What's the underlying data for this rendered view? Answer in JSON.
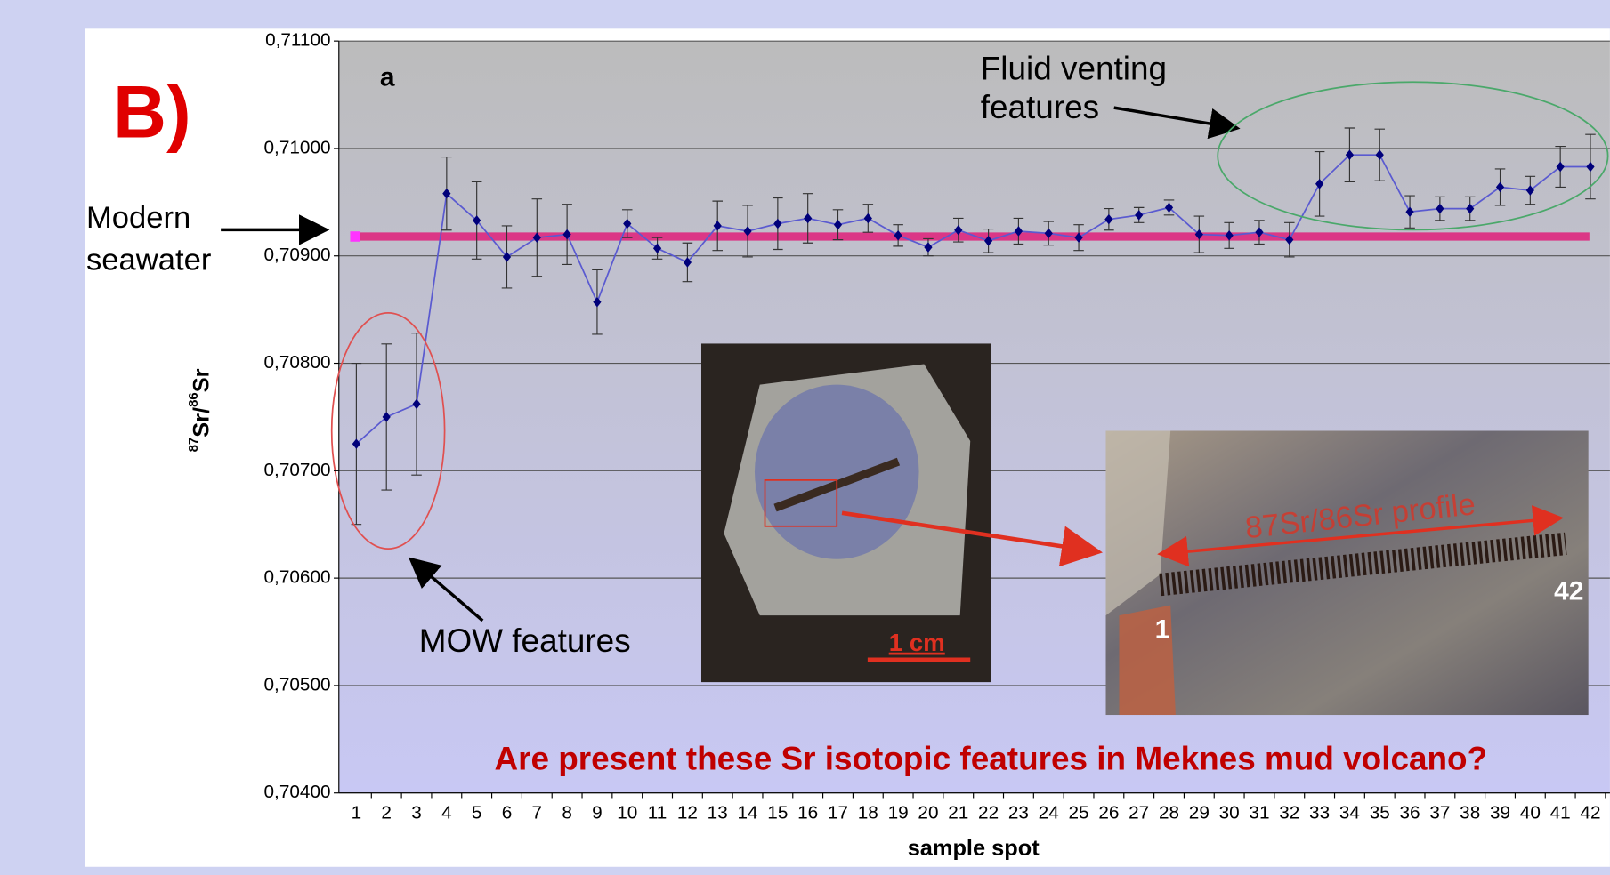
{
  "chart_data": {
    "type": "line",
    "panel_label": "B)",
    "subplot_label": "a",
    "xlabel": "sample spot",
    "ylabel": {
      "base1": "87",
      "mid": "Sr/",
      "base2": "86",
      "end": "Sr"
    },
    "categories": [
      1,
      2,
      3,
      4,
      5,
      6,
      7,
      8,
      9,
      10,
      11,
      12,
      13,
      14,
      15,
      16,
      17,
      18,
      19,
      20,
      21,
      22,
      23,
      24,
      25,
      26,
      27,
      28,
      29,
      30,
      31,
      32,
      33,
      34,
      35,
      36,
      37,
      38,
      39,
      40,
      41,
      42
    ],
    "series": [
      {
        "color": "#00007a",
        "line_color": "#5a5ad0",
        "values": [
          0.70725,
          0.7075,
          0.70762,
          0.70958,
          0.70933,
          0.70899,
          0.70917,
          0.7092,
          0.70857,
          0.7093,
          0.70907,
          0.70894,
          0.70928,
          0.70923,
          0.7093,
          0.70935,
          0.70929,
          0.70935,
          0.70919,
          0.70908,
          0.70924,
          0.70914,
          0.70923,
          0.70921,
          0.70917,
          0.70934,
          0.70938,
          0.70945,
          0.7092,
          0.70919,
          0.70922,
          0.70915,
          0.70967,
          0.70994,
          0.70994,
          0.70941,
          0.70944,
          0.70944,
          0.70964,
          0.70961,
          0.70983,
          0.70983
        ],
        "errors": [
          0.00075,
          0.00068,
          0.00066,
          0.00034,
          0.00036,
          0.00029,
          0.00036,
          0.00028,
          0.0003,
          0.00013,
          0.0001,
          0.00018,
          0.00023,
          0.00024,
          0.00024,
          0.00023,
          0.00014,
          0.00013,
          0.0001,
          8e-05,
          0.00011,
          0.00011,
          0.00012,
          0.00011,
          0.00012,
          0.0001,
          7e-05,
          7e-05,
          0.00017,
          0.00012,
          0.00011,
          0.00016,
          0.0003,
          0.00025,
          0.00024,
          0.00015,
          0.00011,
          0.00011,
          0.00017,
          0.00013,
          0.00019,
          0.0003
        ]
      }
    ],
    "reference_line": {
      "value": 0.70918,
      "color": "#e0207a",
      "label": [
        "Modern",
        "seawater"
      ]
    },
    "ylim": [
      0.704,
      0.711
    ],
    "yticks": [
      {
        "value": 0.704,
        "label": "0,70400"
      },
      {
        "value": 0.705,
        "label": "0,70500"
      },
      {
        "value": 0.706,
        "label": "0,70600"
      },
      {
        "value": 0.707,
        "label": "0,70700"
      },
      {
        "value": 0.708,
        "label": "0,70800"
      },
      {
        "value": 0.709,
        "label": "0,70900"
      },
      {
        "value": 0.71,
        "label": "0,71000"
      },
      {
        "value": 0.711,
        "label": "0,71100"
      }
    ],
    "grid": true,
    "annotations": {
      "fluid_venting": [
        "Fluid venting",
        "features"
      ],
      "mow": "MOW features",
      "question": "Are present these Sr isotopic features in Meknes mud volcano?",
      "scale_bar": "1 cm",
      "profile": "87Sr/86Sr profile",
      "profile_start": "1",
      "profile_end": "42"
    }
  }
}
